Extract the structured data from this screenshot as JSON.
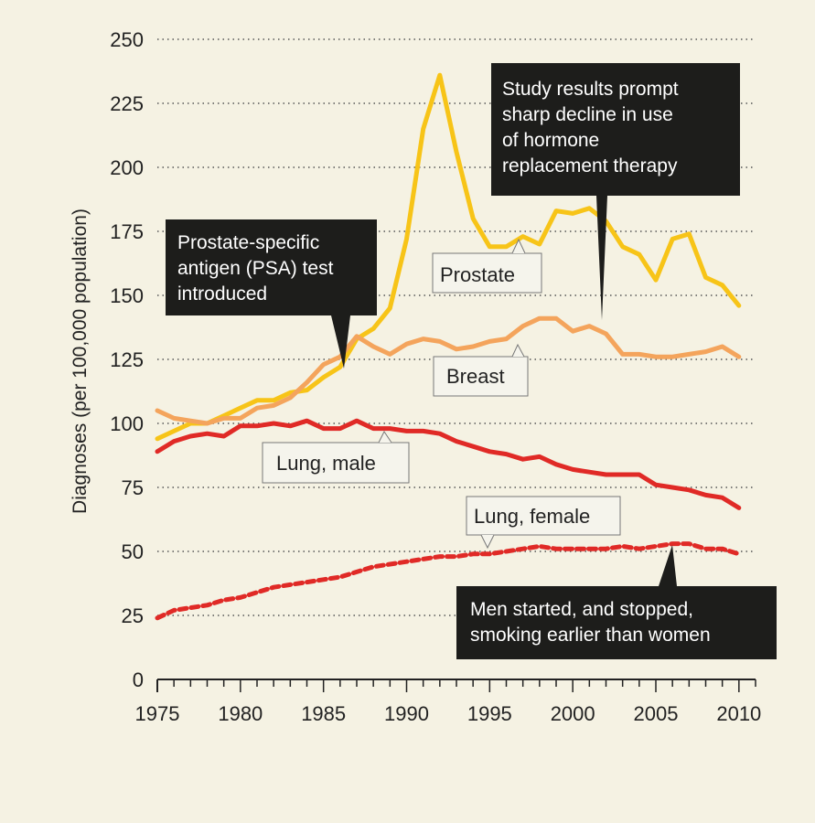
{
  "chart_data": {
    "type": "line",
    "title": "",
    "xlabel": "",
    "ylabel": "Diagnoses (per 100,000 population)",
    "xlim": [
      1975,
      2011
    ],
    "ylim": [
      0,
      250
    ],
    "xticks": [
      1975,
      1980,
      1985,
      1990,
      1995,
      2000,
      2005,
      2010
    ],
    "yticks": [
      0,
      25,
      50,
      75,
      100,
      125,
      150,
      175,
      200,
      225,
      250
    ],
    "grid": true,
    "x": [
      1975,
      1976,
      1977,
      1978,
      1979,
      1980,
      1981,
      1982,
      1983,
      1984,
      1985,
      1986,
      1987,
      1988,
      1989,
      1990,
      1991,
      1992,
      1993,
      1994,
      1995,
      1996,
      1997,
      1998,
      1999,
      2000,
      2001,
      2002,
      2003,
      2004,
      2005,
      2006,
      2007,
      2008,
      2009,
      2010
    ],
    "series": [
      {
        "name": "Prostate",
        "color": "#f7c418",
        "dashed": false,
        "values": [
          94,
          97,
          100,
          100,
          103,
          106,
          109,
          109,
          112,
          113,
          118,
          122,
          133,
          137,
          145,
          172,
          215,
          236,
          206,
          180,
          169,
          169,
          173,
          170,
          183,
          182,
          184,
          179,
          169,
          166,
          156,
          172,
          174,
          157,
          154,
          146
        ]
      },
      {
        "name": "Breast",
        "color": "#f4a45c",
        "dashed": false,
        "values": [
          105,
          102,
          101,
          100,
          102,
          102,
          106,
          107,
          110,
          116,
          123,
          126,
          134,
          130,
          127,
          131,
          133,
          132,
          129,
          130,
          132,
          133,
          138,
          141,
          141,
          136,
          138,
          135,
          127,
          127,
          126,
          126,
          127,
          128,
          130,
          126
        ]
      },
      {
        "name": "Lung, male",
        "color": "#e02a26",
        "dashed": false,
        "values": [
          89,
          93,
          95,
          96,
          95,
          99,
          99,
          100,
          99,
          101,
          98,
          98,
          101,
          98,
          98,
          97,
          97,
          96,
          93,
          91,
          89,
          88,
          86,
          87,
          84,
          82,
          81,
          80,
          80,
          80,
          76,
          75,
          74,
          72,
          71,
          67
        ]
      },
      {
        "name": "Lung, female",
        "color": "#e02a26",
        "dashed": true,
        "values": [
          24,
          27,
          28,
          29,
          31,
          32,
          34,
          36,
          37,
          38,
          39,
          40,
          42,
          44,
          45,
          46,
          47,
          48,
          48,
          49,
          49,
          50,
          51,
          52,
          51,
          51,
          51,
          51,
          52,
          51,
          52,
          53,
          53,
          51,
          51,
          49
        ]
      }
    ],
    "labels": {
      "prostate": "Prostate",
      "breast": "Breast",
      "lung_male": "Lung, male",
      "lung_female": "Lung, female"
    },
    "annotations": {
      "psa": [
        "Prostate-specific",
        "antigen (PSA) test",
        "introduced"
      ],
      "hrt": [
        "Study results prompt",
        "sharp decline in use",
        "of hormone",
        "replacement therapy"
      ],
      "smoking": [
        "Men started, and stopped,",
        "smoking earlier than women"
      ]
    }
  },
  "colors": {
    "background": "#f5f2e3",
    "callout_bg": "#1d1d1b",
    "label_bg": "#f5f4ec",
    "axis": "#222222",
    "grid": "#555555"
  }
}
